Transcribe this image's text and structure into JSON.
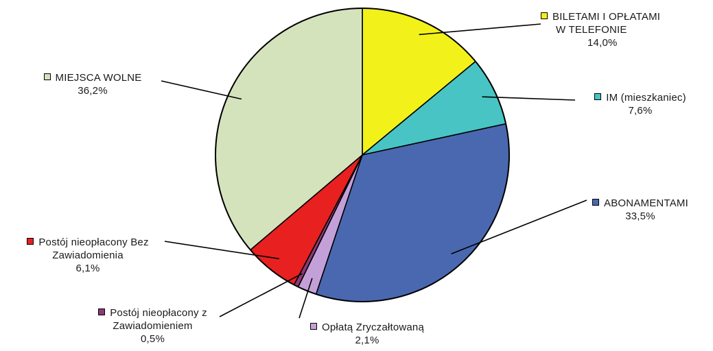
{
  "chart_data": {
    "type": "pie",
    "slices": [
      {
        "label": "BILETAMI I OPŁATAMI W TELEFONIE",
        "label_lines": [
          "BILETAMI I OPŁATAMI",
          "W TELEFONIE"
        ],
        "value": 14.0,
        "value_text": "14,0%",
        "color": "#f2f21a"
      },
      {
        "label": "IM (mieszkaniec)",
        "label_lines": [
          "IM (mieszkaniec)"
        ],
        "value": 7.6,
        "value_text": "7,6%",
        "color": "#48c4c4"
      },
      {
        "label": "ABONAMENTAMI",
        "label_lines": [
          "ABONAMENTAMI"
        ],
        "value": 33.5,
        "value_text": "33,5%",
        "color": "#4a68b0"
      },
      {
        "label": "Opłatą Zryczałtowaną",
        "label_lines": [
          "Opłatą Zryczałtowaną"
        ],
        "value": 2.1,
        "value_text": "2,1%",
        "color": "#c4a0d8"
      },
      {
        "label": "Postój nieopłacony z Zawiadomieniem",
        "label_lines": [
          "Postój nieopłacony z",
          "Zawiadomieniem"
        ],
        "value": 0.5,
        "value_text": "0,5%",
        "color": "#8a3a78"
      },
      {
        "label": "Postój nieopłacony Bez Zawiadomienia",
        "label_lines": [
          "Postój nieopłacony Bez",
          "Zawiadomienia"
        ],
        "value": 6.1,
        "value_text": "6,1%",
        "color": "#e82020"
      },
      {
        "label": "MIEJSCA WOLNE",
        "label_lines": [
          "MIEJSCA WOLNE"
        ],
        "value": 36.2,
        "value_text": "36,2%",
        "color": "#d4e3bc"
      }
    ],
    "start": "top",
    "direction": "clockwise"
  }
}
